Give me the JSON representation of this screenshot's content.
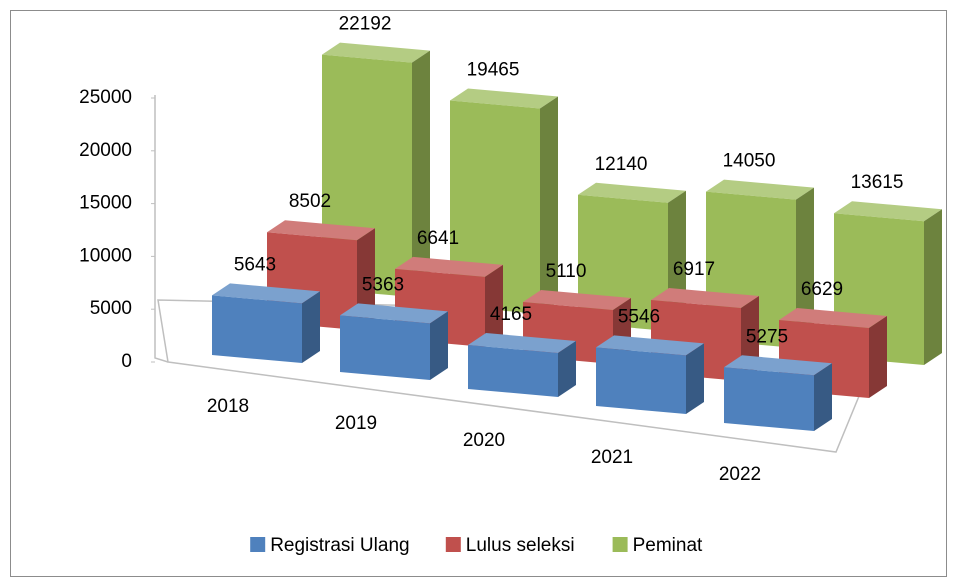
{
  "chart_data": {
    "type": "bar3d",
    "categories": [
      "2018",
      "2019",
      "2020",
      "2021",
      "2022"
    ],
    "series": [
      {
        "name": "Registrasi Ulang",
        "color": "#4f81bd",
        "values": [
          5643,
          5363,
          4165,
          5546,
          5275
        ]
      },
      {
        "name": "Lulus seleksi",
        "color": "#c0504d",
        "values": [
          8502,
          6641,
          5110,
          6917,
          6629
        ]
      },
      {
        "name": "Peminat",
        "color": "#9bbb59",
        "values": [
          22192,
          19465,
          12140,
          14050,
          13615
        ]
      }
    ],
    "ylim": [
      0,
      25000
    ],
    "yticks": [
      0,
      5000,
      10000,
      15000,
      20000,
      25000
    ],
    "legend": "bottom"
  }
}
